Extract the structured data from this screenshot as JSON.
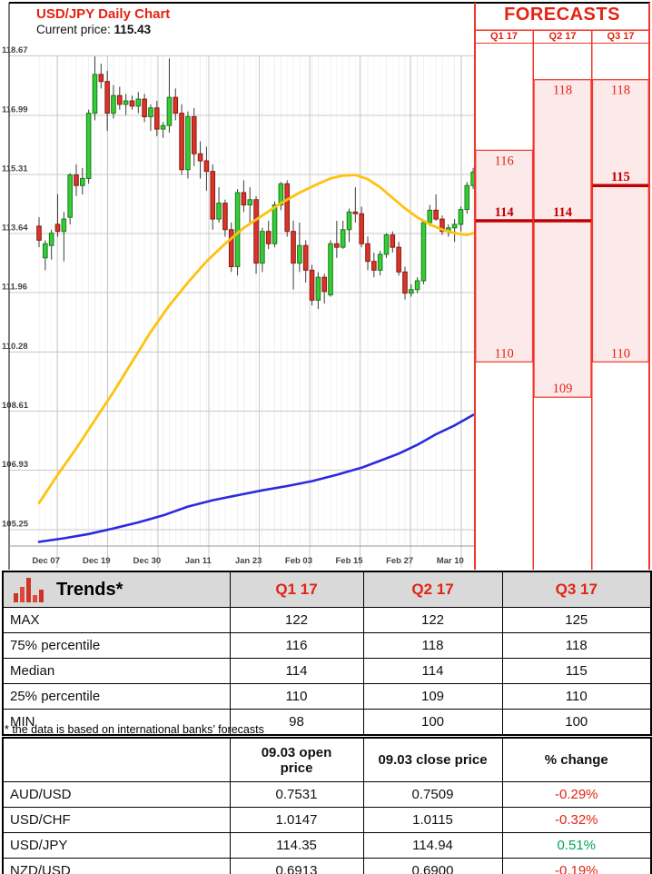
{
  "colors": {
    "accent_red": "#e42313",
    "candle_up_fill": "#35cd35",
    "candle_up_stroke": "#1b7a1b",
    "candle_down_fill": "#da342a",
    "candle_down_stroke": "#8a1b11",
    "wick": "#3a3a3a",
    "ma_yellow": "#ffc20e",
    "ma_blue": "#2a2ae0",
    "grid": "#c8c8c8",
    "grid_minor": "#f0f0f0",
    "forecast_box_fill": "#fce9e9",
    "forecast_box_stroke": "#f0372c",
    "forecast_median": "#c00000",
    "pct_up_green": "#00a550"
  },
  "chart_data": {
    "type": "candlestick",
    "title": "USD/JPY Daily Chart",
    "current_price_label": "Current price:",
    "current_price": "115.43",
    "ylim": [
      104.8,
      118.67
    ],
    "y_ticks": [
      "118.67",
      "116.99",
      "115.31",
      "113.64",
      "111.96",
      "110.28",
      "108.61",
      "106.93",
      "105.25"
    ],
    "x_ticks": [
      "Dec 07",
      "Dec 19",
      "Dec 30",
      "Jan 11",
      "Jan 23",
      "Feb 03",
      "Feb 15",
      "Feb 27",
      "Mar 10"
    ],
    "candles": [
      [
        113.85,
        114.1,
        113.25,
        113.45
      ],
      [
        112.95,
        113.45,
        112.6,
        113.35
      ],
      [
        113.3,
        113.75,
        112.9,
        113.65
      ],
      [
        113.9,
        114.75,
        113.55,
        113.7
      ],
      [
        113.7,
        114.25,
        112.85,
        114.05
      ],
      [
        114.1,
        115.35,
        113.9,
        115.3
      ],
      [
        115.3,
        115.6,
        114.7,
        115.0
      ],
      [
        115.0,
        115.5,
        114.75,
        115.2
      ],
      [
        115.2,
        117.15,
        115.05,
        117.05
      ],
      [
        117.05,
        118.66,
        116.85,
        118.15
      ],
      [
        118.15,
        118.45,
        117.75,
        117.95
      ],
      [
        117.95,
        118.25,
        116.55,
        117.05
      ],
      [
        117.05,
        117.85,
        116.9,
        117.55
      ],
      [
        117.55,
        117.8,
        117.15,
        117.3
      ],
      [
        117.3,
        117.6,
        117.0,
        117.4
      ],
      [
        117.4,
        117.55,
        117.15,
        117.25
      ],
      [
        117.25,
        117.65,
        117.05,
        117.45
      ],
      [
        117.45,
        117.6,
        116.8,
        116.95
      ],
      [
        116.95,
        117.3,
        116.55,
        117.2
      ],
      [
        117.2,
        117.4,
        116.4,
        116.6
      ],
      [
        116.6,
        116.8,
        116.35,
        116.7
      ],
      [
        116.7,
        118.6,
        116.5,
        117.5
      ],
      [
        117.5,
        117.75,
        116.85,
        117.05
      ],
      [
        117.05,
        117.3,
        115.3,
        115.45
      ],
      [
        115.45,
        117.1,
        115.2,
        116.95
      ],
      [
        116.95,
        117.2,
        115.55,
        115.9
      ],
      [
        115.9,
        116.25,
        115.2,
        115.7
      ],
      [
        115.7,
        116.1,
        114.85,
        115.4
      ],
      [
        115.4,
        115.6,
        113.75,
        114.05
      ],
      [
        114.05,
        114.95,
        113.95,
        114.5
      ],
      [
        114.5,
        114.6,
        113.55,
        113.75
      ],
      [
        113.75,
        113.95,
        112.55,
        112.7
      ],
      [
        112.7,
        114.9,
        112.45,
        114.8
      ],
      [
        114.8,
        115.15,
        114.25,
        114.45
      ],
      [
        114.45,
        114.95,
        113.95,
        114.6
      ],
      [
        114.6,
        114.7,
        112.5,
        112.8
      ],
      [
        112.8,
        113.8,
        112.55,
        113.7
      ],
      [
        113.7,
        114.0,
        113.2,
        113.35
      ],
      [
        113.35,
        114.55,
        113.25,
        114.45
      ],
      [
        114.45,
        115.1,
        114.3,
        115.05
      ],
      [
        115.05,
        115.15,
        113.55,
        113.7
      ],
      [
        113.7,
        114.0,
        112.05,
        112.8
      ],
      [
        112.8,
        113.95,
        112.55,
        113.3
      ],
      [
        113.3,
        113.45,
        112.25,
        112.6
      ],
      [
        112.6,
        112.75,
        111.6,
        111.75
      ],
      [
        111.75,
        112.55,
        111.5,
        112.4
      ],
      [
        112.4,
        112.5,
        111.65,
        112.0
      ],
      [
        111.9,
        113.45,
        111.85,
        113.35
      ],
      [
        113.35,
        114.0,
        112.95,
        113.25
      ],
      [
        113.25,
        114.0,
        113.2,
        113.75
      ],
      [
        113.75,
        114.35,
        113.4,
        114.25
      ],
      [
        114.25,
        114.95,
        113.95,
        114.2
      ],
      [
        114.2,
        114.4,
        113.25,
        113.35
      ],
      [
        113.35,
        113.55,
        112.6,
        112.85
      ],
      [
        112.85,
        113.1,
        112.4,
        112.6
      ],
      [
        112.6,
        113.15,
        112.45,
        113.05
      ],
      [
        113.05,
        113.65,
        112.95,
        113.6
      ],
      [
        113.6,
        113.7,
        113.1,
        113.25
      ],
      [
        113.25,
        113.4,
        112.45,
        112.55
      ],
      [
        112.55,
        112.7,
        111.77,
        111.95
      ],
      [
        111.95,
        112.2,
        111.85,
        112.05
      ],
      [
        112.05,
        112.4,
        111.95,
        112.3
      ],
      [
        112.3,
        114.0,
        112.2,
        113.95
      ],
      [
        113.95,
        114.45,
        113.85,
        114.3
      ],
      [
        114.3,
        114.75,
        114.0,
        114.05
      ],
      [
        114.05,
        114.15,
        113.6,
        113.7
      ],
      [
        113.7,
        113.9,
        113.55,
        113.8
      ],
      [
        113.8,
        114.05,
        113.4,
        113.9
      ],
      [
        113.9,
        114.4,
        113.7,
        114.32
      ],
      [
        114.32,
        115.1,
        114.2,
        115.0
      ],
      [
        115.0,
        115.5,
        114.9,
        115.38
      ]
    ],
    "sma_yellow": [
      [
        0,
        106.0
      ],
      [
        3,
        106.8
      ],
      [
        6,
        107.55
      ],
      [
        9,
        108.35
      ],
      [
        12,
        109.15
      ],
      [
        15,
        110.0
      ],
      [
        18,
        110.85
      ],
      [
        21,
        111.6
      ],
      [
        24,
        112.25
      ],
      [
        27,
        112.85
      ],
      [
        30,
        113.35
      ],
      [
        33,
        113.8
      ],
      [
        36,
        114.15
      ],
      [
        39,
        114.5
      ],
      [
        42,
        114.8
      ],
      [
        45,
        115.05
      ],
      [
        47,
        115.2
      ],
      [
        49,
        115.28
      ],
      [
        51,
        115.3
      ],
      [
        53,
        115.18
      ],
      [
        55,
        114.95
      ],
      [
        57,
        114.65
      ],
      [
        59,
        114.35
      ],
      [
        61,
        114.1
      ],
      [
        63,
        113.9
      ],
      [
        65,
        113.75
      ],
      [
        67,
        113.65
      ],
      [
        69,
        113.6
      ],
      [
        70,
        113.65
      ]
    ],
    "sma_blue": [
      [
        0,
        104.9
      ],
      [
        4,
        105.0
      ],
      [
        8,
        105.12
      ],
      [
        12,
        105.28
      ],
      [
        16,
        105.45
      ],
      [
        20,
        105.65
      ],
      [
        24,
        105.9
      ],
      [
        28,
        106.08
      ],
      [
        32,
        106.22
      ],
      [
        36,
        106.36
      ],
      [
        40,
        106.48
      ],
      [
        44,
        106.62
      ],
      [
        48,
        106.8
      ],
      [
        52,
        107.0
      ],
      [
        55,
        107.2
      ],
      [
        58,
        107.4
      ],
      [
        61,
        107.65
      ],
      [
        64,
        107.95
      ],
      [
        67,
        108.2
      ],
      [
        70,
        108.5
      ]
    ]
  },
  "forecasts": {
    "title": "FORECASTS",
    "quarters": [
      {
        "label": "Q1 17",
        "q75": 116,
        "q25": 110,
        "median": 114
      },
      {
        "label": "Q2 17",
        "q75": 118,
        "q25": 109,
        "median": 114
      },
      {
        "label": "Q3 17",
        "q75": 118,
        "q25": 110,
        "median": 115
      }
    ]
  },
  "trends": {
    "title": "Trends*",
    "columns": [
      "Q1 17",
      "Q2 17",
      "Q3 17"
    ],
    "rows": [
      {
        "label": "MAX",
        "values": [
          122,
          122,
          125
        ]
      },
      {
        "label": "75% percentile",
        "values": [
          116,
          118,
          118
        ]
      },
      {
        "label": "Median",
        "values": [
          114,
          114,
          115
        ]
      },
      {
        "label": "25% percentile",
        "values": [
          110,
          109,
          110
        ]
      },
      {
        "label": "MIN",
        "values": [
          98,
          100,
          100
        ]
      }
    ]
  },
  "footnote": "* the data is based on international banks’ forecasts",
  "pairs_table": {
    "columns": [
      "",
      "09.03 open price",
      "09.03 close price",
      "% change"
    ],
    "open_header": "09.03 open price",
    "close_header": "09.03 close price",
    "change_header": "% change",
    "rows": [
      {
        "pair": "AUD/USD",
        "open": "0.7531",
        "close": "0.7509",
        "change": "-0.29%"
      },
      {
        "pair": "USD/CHF",
        "open": "1.0147",
        "close": "1.0115",
        "change": "-0.32%"
      },
      {
        "pair": "USD/JPY",
        "open": "114.35",
        "close": "114.94",
        "change": "0.51%"
      },
      {
        "pair": "NZD/USD",
        "open": "0.6913",
        "close": "0.6900",
        "change": "-0.19%"
      }
    ]
  }
}
